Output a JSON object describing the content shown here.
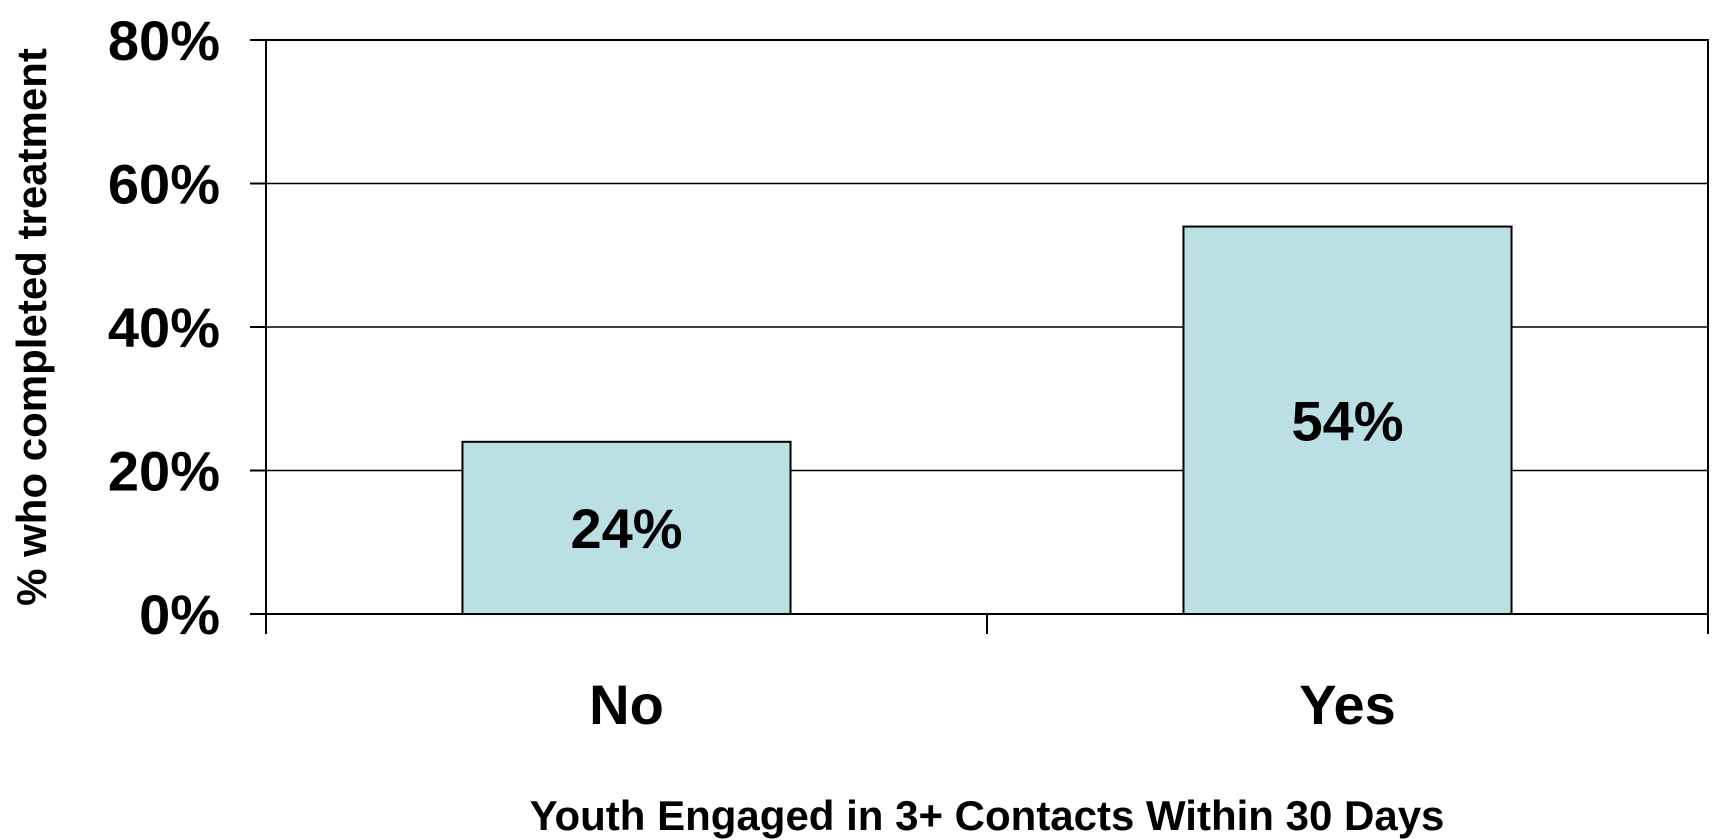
{
  "chart_data": {
    "type": "bar",
    "title": "",
    "xlabel": "Youth Engaged in 3+ Contacts Within 30 Days",
    "ylabel": "% who completed treatment",
    "categories": [
      "No",
      "Yes"
    ],
    "values": [
      24,
      54
    ],
    "data_labels": [
      "24%",
      "54%"
    ],
    "ylim": [
      0,
      80
    ],
    "yticks": [
      0,
      20,
      40,
      60,
      80
    ],
    "ytick_labels": [
      "0%",
      "20%",
      "40%",
      "60%",
      "80%"
    ],
    "grid": true,
    "legend": "none",
    "bar_color": "#BBE0E3",
    "bar_edge_color": "#000000"
  }
}
